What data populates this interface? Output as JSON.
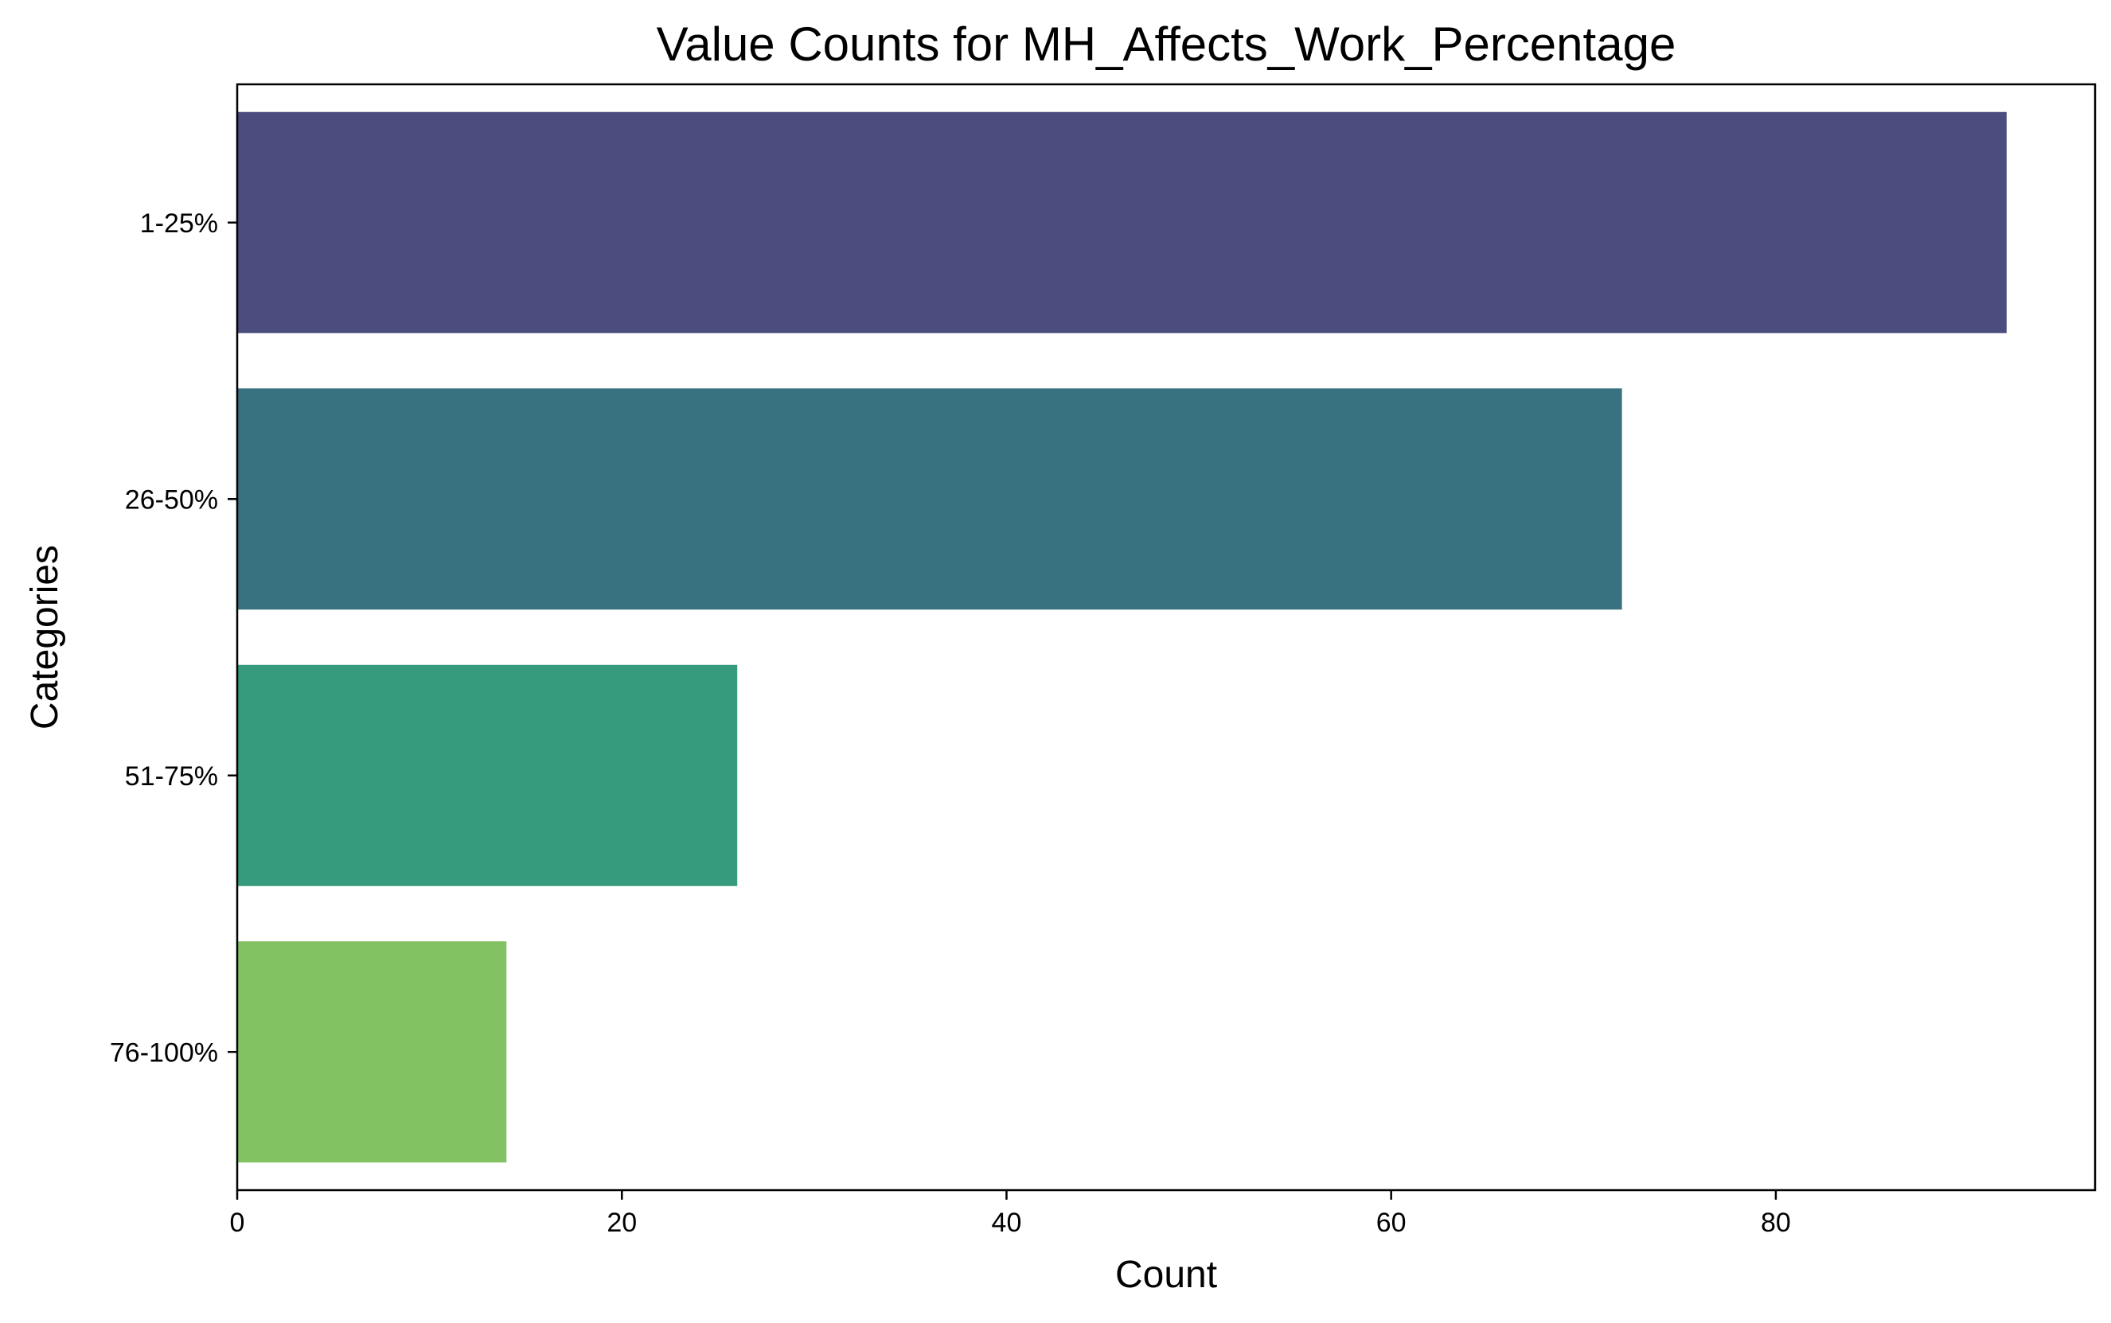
{
  "chart_data": {
    "type": "bar",
    "orientation": "horizontal",
    "title": "Value Counts for MH_Affects_Work_Percentage",
    "xlabel": "Count",
    "ylabel": "Categories",
    "categories": [
      "1-25%",
      "26-50%",
      "51-75%",
      "76-100%"
    ],
    "values": [
      92,
      72,
      26,
      14
    ],
    "colors": [
      "#4a4d7e",
      "#38717f",
      "#369a7c",
      "#82c262"
    ],
    "xlim": [
      0,
      96.6
    ],
    "xticks": [
      0,
      20,
      40,
      60,
      80
    ],
    "grid": false,
    "legend": "none"
  }
}
